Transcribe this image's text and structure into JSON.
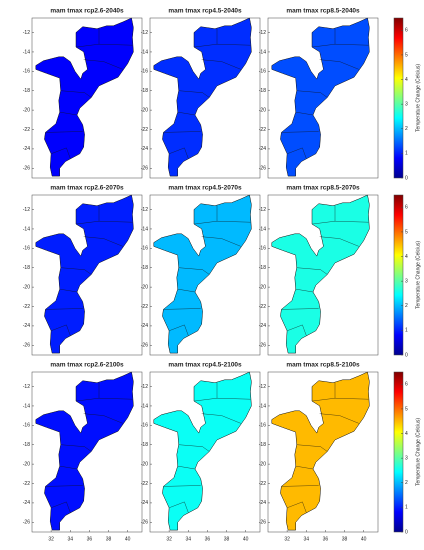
{
  "chart_data": [
    {
      "type": "map",
      "title": "mam tmax rcp2.6-2040s",
      "value": 0.8,
      "xlim": [
        30,
        41.5
      ],
      "ylim": [
        -27,
        -10.5
      ],
      "yticks": [
        -12,
        -14,
        -16,
        -18,
        -20,
        -22,
        -24,
        -26
      ]
    },
    {
      "type": "map",
      "title": "mam tmax rcp4.5-2040s",
      "value": 1.1,
      "xlim": [
        30,
        41.5
      ],
      "ylim": [
        -27,
        -10.5
      ],
      "yticks": [
        -12,
        -14,
        -16,
        -18,
        -20,
        -22,
        -24,
        -26
      ]
    },
    {
      "type": "map",
      "title": "mam tmax rcp8.5-2040s",
      "value": 1.3,
      "xlim": [
        30,
        41.5
      ],
      "ylim": [
        -27,
        -10.5
      ],
      "yticks": [
        -12,
        -14,
        -16,
        -18,
        -20,
        -22,
        -24,
        -26
      ]
    },
    {
      "type": "map",
      "title": "mam tmax rcp2.6-2070s",
      "value": 1.0,
      "xlim": [
        30,
        41.5
      ],
      "ylim": [
        -27,
        -10.5
      ],
      "yticks": [
        -12,
        -14,
        -16,
        -18,
        -20,
        -22,
        -24,
        -26
      ]
    },
    {
      "type": "map",
      "title": "mam tmax rcp4.5-2070s",
      "value": 2.0,
      "xlim": [
        30,
        41.5
      ],
      "ylim": [
        -27,
        -10.5
      ],
      "yticks": [
        -12,
        -14,
        -16,
        -18,
        -20,
        -22,
        -24,
        -26
      ]
    },
    {
      "type": "map",
      "title": "mam tmax rcp8.5-2070s",
      "value": 2.6,
      "xlim": [
        30,
        41.5
      ],
      "ylim": [
        -27,
        -10.5
      ],
      "yticks": [
        -12,
        -14,
        -16,
        -18,
        -20,
        -22,
        -24,
        -26
      ]
    },
    {
      "type": "map",
      "title": "mam tmax rcp2.6-2100s",
      "value": 0.9,
      "xlim": [
        30,
        41.5
      ],
      "ylim": [
        -27,
        -10.5
      ],
      "yticks": [
        -12,
        -14,
        -16,
        -18,
        -20,
        -22,
        -24,
        -26
      ],
      "xticks": [
        32,
        34,
        36,
        38,
        40
      ]
    },
    {
      "type": "map",
      "title": "mam tmax rcp4.5-2100s",
      "value": 2.5,
      "xlim": [
        30,
        41.5
      ],
      "ylim": [
        -27,
        -10.5
      ],
      "yticks": [
        -12,
        -14,
        -16,
        -18,
        -20,
        -22,
        -24,
        -26
      ],
      "xticks": [
        32,
        34,
        36,
        38,
        40
      ]
    },
    {
      "type": "map",
      "title": "mam tmax rcp8.5-2100s",
      "value": 4.5,
      "xlim": [
        30,
        41.5
      ],
      "ylim": [
        -27,
        -10.5
      ],
      "yticks": [
        -12,
        -14,
        -16,
        -18,
        -20,
        -22,
        -24,
        -26
      ],
      "xticks": [
        32,
        34,
        36,
        38,
        40
      ]
    }
  ],
  "colorbars": [
    {
      "label": "Temperature Change (Celcius)",
      "lim": [
        0,
        6.5
      ],
      "ticks": [
        0,
        1,
        2,
        3,
        4,
        5,
        6
      ],
      "colormap": "jet"
    },
    {
      "label": "Temperature Change (Celcius)",
      "lim": [
        0,
        6.5
      ],
      "ticks": [
        0,
        1,
        2,
        3,
        4,
        5,
        6
      ],
      "colormap": "jet"
    },
    {
      "label": "Temperature Change (Celcius)",
      "lim": [
        0,
        6.5
      ],
      "ticks": [
        0,
        1,
        2,
        3,
        4,
        5,
        6
      ],
      "colormap": "jet"
    }
  ]
}
